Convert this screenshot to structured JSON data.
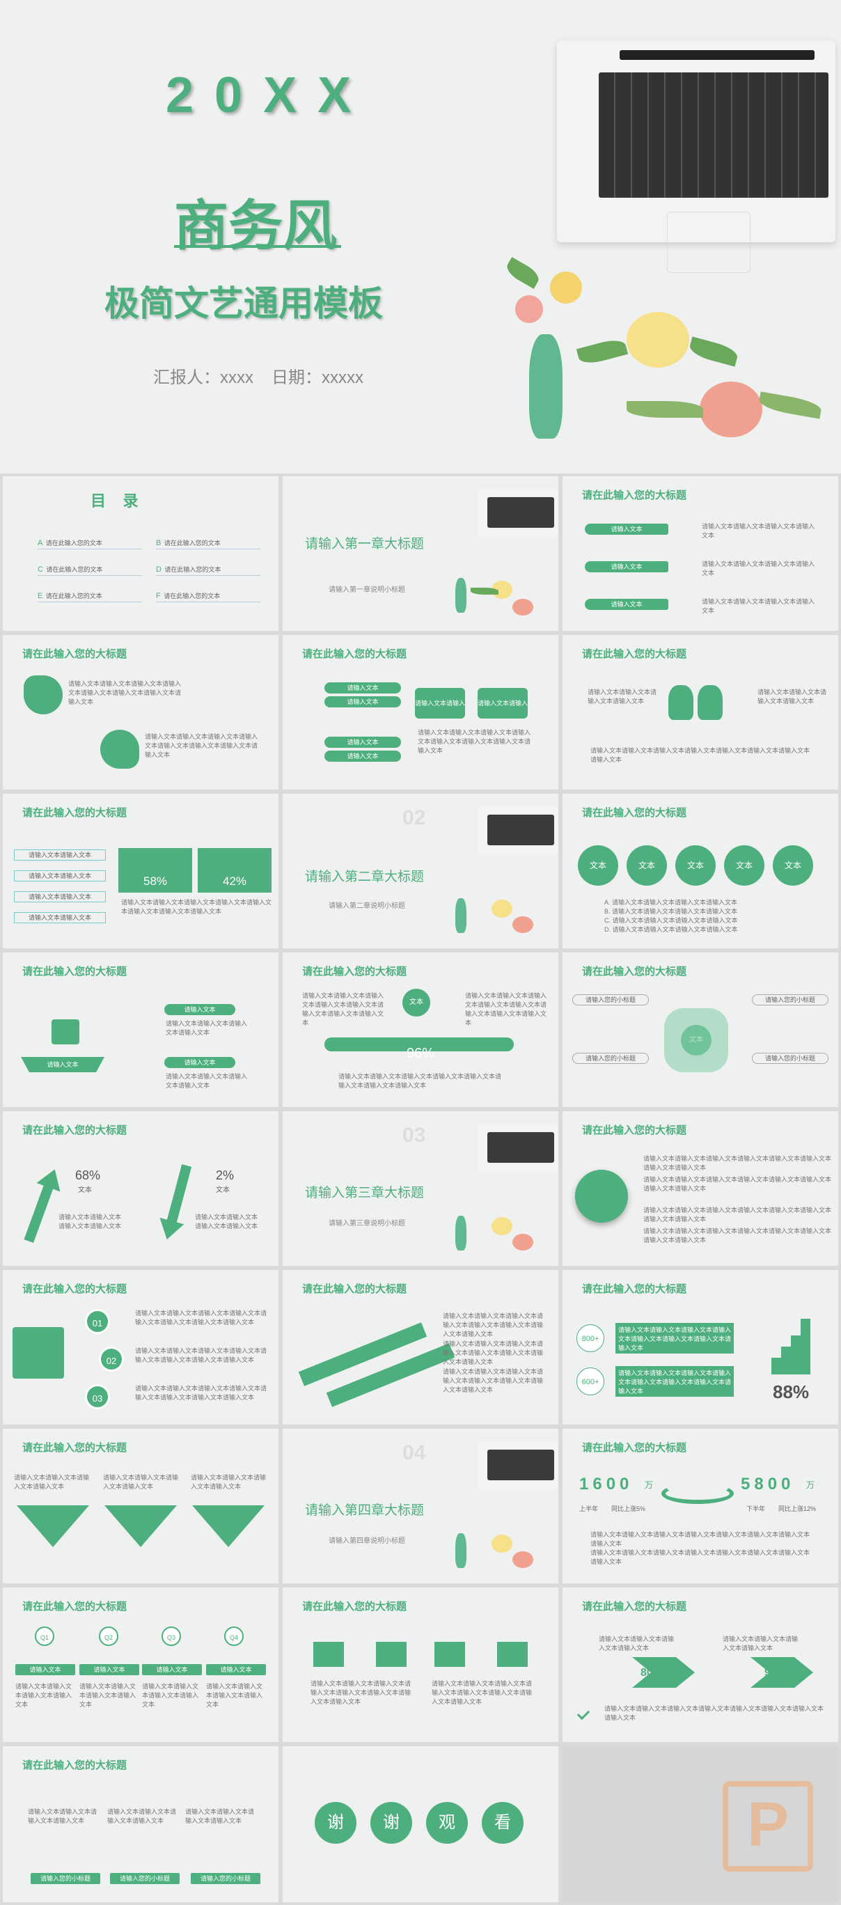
{
  "hero": {
    "year": "20XX",
    "title": "商务风",
    "subtitle": "极简文艺通用模板",
    "reporter": "汇报人：xxxx",
    "date": "日期：xxxxx"
  },
  "toc": {
    "title": "目    录",
    "items": [
      {
        "letter": "A",
        "text": "请在此输入您的文本"
      },
      {
        "letter": "B",
        "text": "请在此输入您的文本"
      },
      {
        "letter": "C",
        "text": "请在此输入您的文本"
      },
      {
        "letter": "D",
        "text": "请在此输入您的文本"
      },
      {
        "letter": "E",
        "text": "请在此输入您的文本"
      },
      {
        "letter": "F",
        "text": "请在此输入您的文本"
      }
    ]
  },
  "slide_title": "请在此输入您的大标题",
  "chapters": [
    {
      "num": "",
      "title": "请输入第一章大标题",
      "sub": "请输入第一章说明小标题"
    },
    {
      "num": "02",
      "title": "请输入第二章大标题",
      "sub": "请输入第二章说明小标题"
    },
    {
      "num": "03",
      "title": "请输入第三章大标题",
      "sub": "请输入第三章说明小标题"
    },
    {
      "num": "04",
      "title": "请输入第四章大标题",
      "sub": "请输入第四章说明小标题"
    }
  ],
  "labels": {
    "input_text": "请输入文本",
    "input_text_long": "请输入文本请输入文本",
    "wen": "文本",
    "body_short": "请输入文本请输入文本请输入文本请输入文本",
    "body": "请输入文本请输入文本请输入文本请输入文本请输入文本请输入文本请输入文本请输入文本",
    "small_title": "请输入您的小标题"
  },
  "percents": {
    "p58": "58%",
    "p42": "42%",
    "p96": "96%",
    "p68": "68%",
    "p2": "2%",
    "p80": "80%",
    "p93": "93%",
    "p88": "88%"
  },
  "list_abcd": [
    "A.  请输入文本请输入文本请输入文本请输入文本",
    "B.  请输入文本请输入文本请输入文本请输入文本",
    "C.  请输入文本请输入文本请输入文本请输入文本",
    "D.  请输入文本请输入文本请输入文本请输入文本"
  ],
  "nums": [
    "01",
    "02",
    "03"
  ],
  "quarters": [
    "Q1",
    "Q2",
    "Q3",
    "Q4"
  ],
  "stats": {
    "n800": "800+",
    "n600": "600+",
    "v1600": "1600",
    "v5800": "5800",
    "wan": "万",
    "h1": "上半年",
    "h2": "下半年",
    "g1": "同比上涨5%",
    "g2": "同比上涨12%"
  },
  "thanks": [
    "谢",
    "谢",
    "观",
    "看"
  ],
  "watermark": "P"
}
